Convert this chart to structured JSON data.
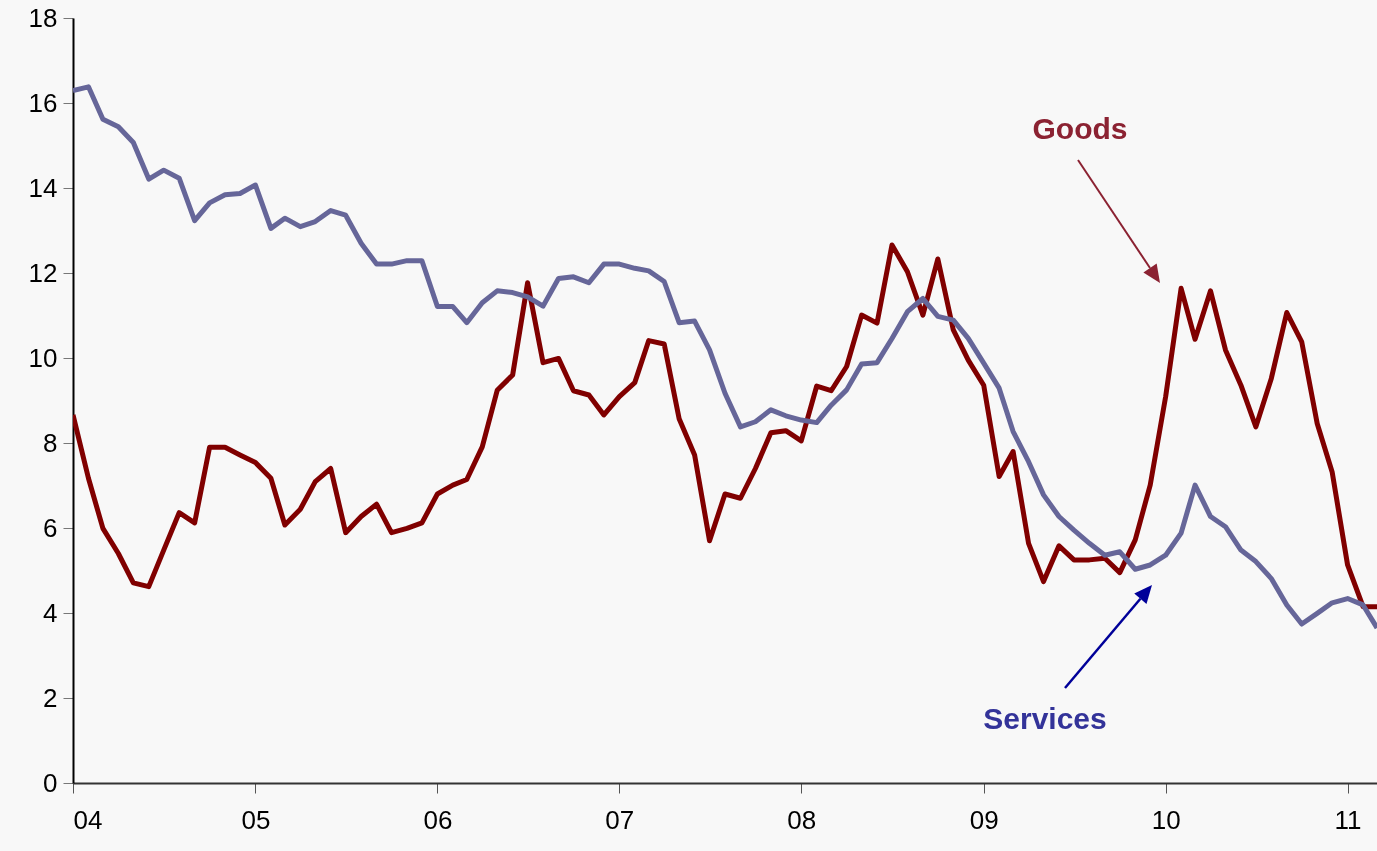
{
  "chart_data": {
    "type": "line",
    "x": [
      "2004-01",
      "2004-02",
      "2004-03",
      "2004-04",
      "2004-05",
      "2004-06",
      "2004-07",
      "2004-08",
      "2004-09",
      "2004-10",
      "2004-11",
      "2004-12",
      "2005-01",
      "2005-02",
      "2005-03",
      "2005-04",
      "2005-05",
      "2005-06",
      "2005-07",
      "2005-08",
      "2005-09",
      "2005-10",
      "2005-11",
      "2005-12",
      "2006-01",
      "2006-02",
      "2006-03",
      "2006-04",
      "2006-05",
      "2006-06",
      "2006-07",
      "2006-08",
      "2006-09",
      "2006-10",
      "2006-11",
      "2006-12",
      "2007-01",
      "2007-02",
      "2007-03",
      "2007-04",
      "2007-05",
      "2007-06",
      "2007-07",
      "2007-08",
      "2007-09",
      "2007-10",
      "2007-11",
      "2007-12",
      "2008-01",
      "2008-02",
      "2008-03",
      "2008-04",
      "2008-05",
      "2008-06",
      "2008-07",
      "2008-08",
      "2008-09",
      "2008-10",
      "2008-11",
      "2008-12",
      "2009-01",
      "2009-02",
      "2009-03",
      "2009-04",
      "2009-05",
      "2009-06",
      "2009-07",
      "2009-08",
      "2009-09",
      "2009-10",
      "2009-11",
      "2009-12",
      "2010-01",
      "2010-02",
      "2010-03",
      "2010-04",
      "2010-05",
      "2010-06",
      "2010-07",
      "2010-08",
      "2010-09",
      "2010-10",
      "2010-11",
      "2010-12",
      "2011-01",
      "2011-02",
      "2011-03"
    ],
    "series": [
      {
        "name": "Goods",
        "color": "#800000",
        "values": [
          8.66,
          7.17,
          5.99,
          5.4,
          4.71,
          4.62,
          5.48,
          6.36,
          6.12,
          7.9,
          7.9,
          7.72,
          7.54,
          7.17,
          6.07,
          6.44,
          7.09,
          7.4,
          5.89,
          6.27,
          6.56,
          5.89,
          5.99,
          6.12,
          6.8,
          7.01,
          7.14,
          7.91,
          9.24,
          9.6,
          11.77,
          9.89,
          9.99,
          9.23,
          9.13,
          8.66,
          9.09,
          9.42,
          10.41,
          10.33,
          8.57,
          7.72,
          5.7,
          6.8,
          6.7,
          7.4,
          8.24,
          8.29,
          8.05,
          9.34,
          9.23,
          9.8,
          11.01,
          10.82,
          12.66,
          12.03,
          11.01,
          12.33,
          10.66,
          9.95,
          9.36,
          7.21,
          7.8,
          5.64,
          4.74,
          5.58,
          5.25,
          5.25,
          5.29,
          4.95,
          5.72,
          7.01,
          9.09,
          11.64,
          10.44,
          11.58,
          10.19,
          9.36,
          8.38,
          9.52,
          11.07,
          10.38,
          8.46,
          7.32,
          5.13,
          4.15,
          4.15
        ]
      },
      {
        "name": "Services",
        "color": "#666699",
        "values": [
          16.29,
          16.38,
          15.62,
          15.44,
          15.07,
          14.21,
          14.42,
          14.23,
          13.23,
          13.65,
          13.84,
          13.87,
          14.07,
          13.05,
          13.29,
          13.09,
          13.21,
          13.47,
          13.36,
          12.7,
          12.21,
          12.21,
          12.29,
          12.29,
          11.21,
          11.21,
          10.83,
          11.3,
          11.58,
          11.54,
          11.44,
          11.22,
          11.87,
          11.91,
          11.77,
          12.21,
          12.21,
          12.11,
          12.05,
          11.8,
          10.83,
          10.87,
          10.19,
          9.17,
          8.38,
          8.5,
          8.78,
          8.64,
          8.54,
          8.48,
          8.89,
          9.25,
          9.86,
          9.89,
          10.46,
          11.09,
          11.4,
          10.98,
          10.89,
          10.46,
          9.88,
          9.29,
          8.27,
          7.56,
          6.78,
          6.27,
          5.95,
          5.64,
          5.36,
          5.44,
          5.03,
          5.13,
          5.36,
          5.88,
          7.01,
          6.27,
          6.03,
          5.48,
          5.21,
          4.81,
          4.19,
          3.74,
          3.99,
          4.24,
          4.34,
          4.19,
          3.65
        ]
      }
    ],
    "xlim": [
      "2004-01",
      "2011-03"
    ],
    "xticks": [
      {
        "value": "2004-01",
        "label": "04"
      },
      {
        "value": "2005-01",
        "label": "05"
      },
      {
        "value": "2006-01",
        "label": "06"
      },
      {
        "value": "2007-01",
        "label": "07"
      },
      {
        "value": "2008-01",
        "label": "08"
      },
      {
        "value": "2009-01",
        "label": "09"
      },
      {
        "value": "2010-01",
        "label": "10"
      },
      {
        "value": "2011-01",
        "label": "11"
      }
    ],
    "ylim": [
      0,
      18
    ],
    "yticks": [
      0,
      2,
      4,
      6,
      8,
      10,
      12,
      14,
      16,
      18
    ],
    "line_style": "solid"
  }
}
